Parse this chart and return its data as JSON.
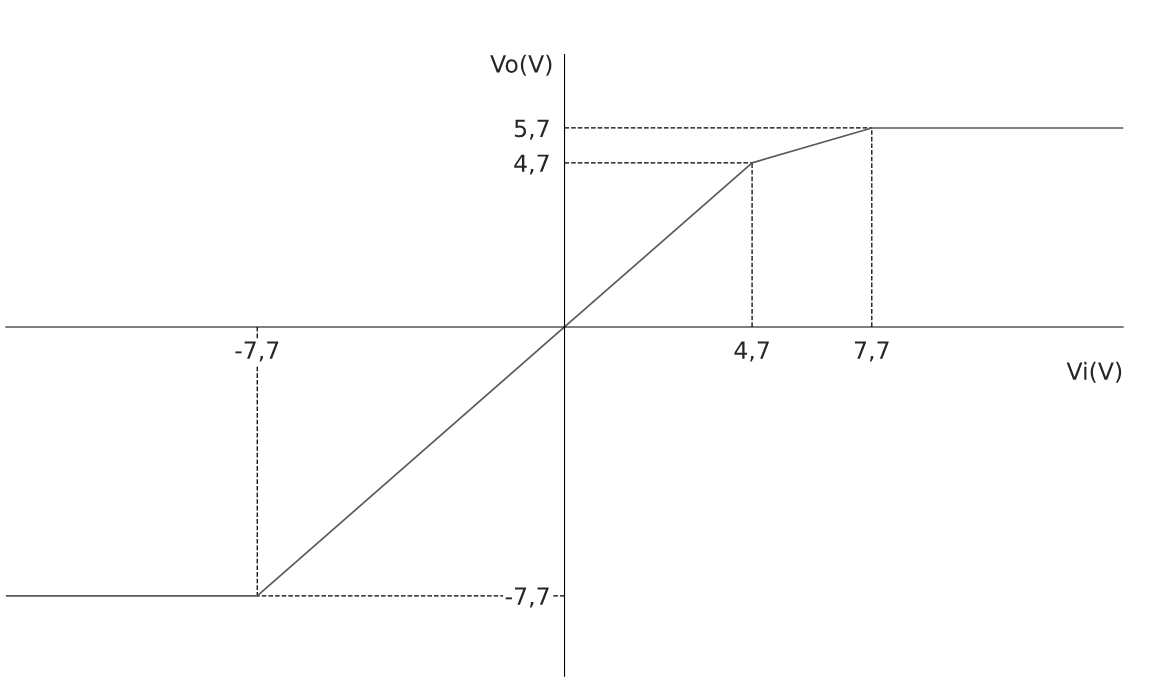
{
  "chart_data": {
    "type": "line",
    "xlabel": "Vi(V)",
    "ylabel": "Vo(V)",
    "x": [
      -14,
      -7.7,
      0,
      4.7,
      7.7,
      14
    ],
    "series": [
      {
        "color": "#595959",
        "values": [
          -7.7,
          -7.7,
          0,
          4.7,
          5.7,
          5.7
        ]
      }
    ],
    "xlim": [
      -14,
      14
    ],
    "ylim": [
      -10,
      7.8
    ],
    "xticks": [
      {
        "value": -7.7,
        "label": "-7,7"
      },
      {
        "value": 4.7,
        "label": "4,7"
      },
      {
        "value": 7.7,
        "label": "7,7"
      }
    ],
    "yticks": [
      {
        "value": -7.7,
        "label": "-7,7"
      },
      {
        "value": 4.7,
        "label": "4,7"
      },
      {
        "value": 5.7,
        "label": "5,7"
      }
    ],
    "ref_lines": [
      {
        "axis": "x",
        "value": -7.7,
        "line_style": "dashed"
      },
      {
        "axis": "x",
        "value": 4.7,
        "line_style": "dashed"
      },
      {
        "axis": "x",
        "value": 7.7,
        "line_style": "dashed"
      },
      {
        "axis": "y",
        "value": -7.7,
        "line_style": "dashed"
      },
      {
        "axis": "y",
        "value": 4.7,
        "line_style": "dashed"
      },
      {
        "axis": "y",
        "value": 5.7,
        "line_style": "dashed"
      }
    ],
    "grid": false,
    "legend": false,
    "marker": "none",
    "line_style": "solid"
  }
}
